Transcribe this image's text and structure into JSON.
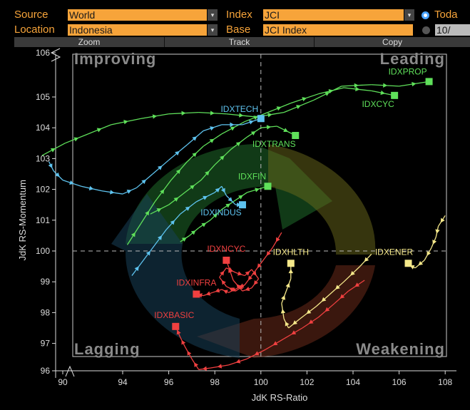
{
  "header": {
    "source_label": "Source",
    "source_value": "World",
    "index_label": "Index",
    "index_value": "JCI",
    "location_label": "Location",
    "location_value": "Indonesia",
    "base_label": "Base",
    "base_value": "JCI Index",
    "option1": "Toda",
    "option2": "10/"
  },
  "menu": {
    "zoom": "Zoom",
    "track": "Track",
    "copy": "Copy"
  },
  "colors": {
    "orange": "#f7a43a",
    "leading": "#5fe05a",
    "improving": "#5ec3ef",
    "lagging": "#f04040",
    "weakening": "#f5e88a"
  },
  "chart_data": {
    "type": "scatter",
    "xlabel": "JdK RS-Ratio",
    "ylabel": "JdK RS-Momentum",
    "xlim": [
      90,
      108.5
    ],
    "ylim": [
      96,
      106
    ],
    "x_ticks": [
      "90",
      "94",
      "96",
      "98",
      "100",
      "102",
      "104",
      "106",
      "108"
    ],
    "y_ticks": [
      "106",
      "105",
      "104",
      "103",
      "102",
      "101",
      "100",
      "99",
      "98",
      "97",
      "96"
    ],
    "quadrants": {
      "top_left": "Improving",
      "top_right": "Leading",
      "bottom_left": "Lagging",
      "bottom_right": "Weakening"
    },
    "series": [
      {
        "name": "IDXPROP",
        "color": "#5fe05a",
        "label_dx": -30,
        "label_dy": -10,
        "points": [
          [
            90.5,
            103.1
          ],
          [
            91.5,
            103.5
          ],
          [
            92.5,
            103.8
          ],
          [
            93.5,
            104.1
          ],
          [
            94.8,
            104.3
          ],
          [
            96,
            104.45
          ],
          [
            97.3,
            104.5
          ],
          [
            98.5,
            104.45
          ],
          [
            99.8,
            104.35
          ],
          [
            101,
            104.5
          ],
          [
            102.3,
            104.9
          ],
          [
            103.5,
            105.35
          ],
          [
            104.8,
            105.4
          ],
          [
            106,
            105.35
          ],
          [
            107.3,
            105.5
          ]
        ]
      },
      {
        "name": "IDXCYC",
        "color": "#5fe05a",
        "label_dx": -23,
        "label_dy": 16,
        "points": [
          [
            94.2,
            100.2
          ],
          [
            94.8,
            100.9
          ],
          [
            95.4,
            101.6
          ],
          [
            96.1,
            102.3
          ],
          [
            96.8,
            102.9
          ],
          [
            97.5,
            103.4
          ],
          [
            98.3,
            103.8
          ],
          [
            99.3,
            104.2
          ],
          [
            100.3,
            104.5
          ],
          [
            101.3,
            104.8
          ],
          [
            102.5,
            105.1
          ],
          [
            103.6,
            105.3
          ],
          [
            104.8,
            105.2
          ],
          [
            105.8,
            105.05
          ]
        ]
      },
      {
        "name": "IDXTRANS",
        "color": "#5fe05a",
        "label_dx": -30,
        "label_dy": 16,
        "points": [
          [
            95.2,
            101.2
          ],
          [
            96,
            101.5
          ],
          [
            96.7,
            101.9
          ],
          [
            97.4,
            102.3
          ],
          [
            98,
            102.8
          ],
          [
            98.7,
            103.3
          ],
          [
            99.4,
            103.7
          ],
          [
            100,
            104
          ],
          [
            100.7,
            104.05
          ],
          [
            101.5,
            103.75
          ]
        ]
      },
      {
        "name": "IDXTECH",
        "color": "#5ec3ef",
        "label_dx": -30,
        "label_dy": -9,
        "points": [
          [
            90.8,
            102.9
          ],
          [
            91,
            102.6
          ],
          [
            91.4,
            102.3
          ],
          [
            92.2,
            102.1
          ],
          [
            93.1,
            101.95
          ],
          [
            94,
            101.85
          ],
          [
            94.6,
            102.05
          ],
          [
            95.3,
            102.5
          ],
          [
            96,
            102.95
          ],
          [
            96.8,
            103.45
          ],
          [
            97.5,
            103.9
          ],
          [
            98.3,
            104.1
          ],
          [
            99.2,
            104.1
          ],
          [
            100,
            104.3
          ]
        ]
      },
      {
        "name": "IDXFIN",
        "color": "#5fe05a",
        "label_dx": -22,
        "label_dy": -10,
        "points": [
          [
            96.5,
            100.3
          ],
          [
            96.9,
            100.5
          ],
          [
            97.3,
            100.75
          ],
          [
            97.8,
            101.0
          ],
          [
            98.3,
            101.35
          ],
          [
            98.9,
            101.65
          ],
          [
            99.4,
            101.9
          ],
          [
            100.3,
            102.1
          ]
        ]
      },
      {
        "name": "IDXINDUS",
        "color": "#5ec3ef",
        "label_dx": -30,
        "label_dy": 15,
        "points": [
          [
            94.4,
            99.2
          ],
          [
            94.9,
            99.7
          ],
          [
            95.4,
            100.2
          ],
          [
            95.9,
            100.7
          ],
          [
            96.5,
            101.2
          ],
          [
            97.2,
            101.6
          ],
          [
            98,
            101.9
          ],
          [
            98.3,
            102.1
          ],
          [
            98.5,
            101.8
          ],
          [
            98.9,
            101.5
          ],
          [
            99.2,
            101.5
          ]
        ]
      },
      {
        "name": "IDXNCYC",
        "color": "#f04040",
        "label_dx": 0,
        "label_dy": -12,
        "points": [
          [
            100.9,
            100.6
          ],
          [
            100.5,
            100.1
          ],
          [
            100.1,
            99.7
          ],
          [
            99.7,
            99.3
          ],
          [
            99.3,
            98.9
          ],
          [
            98.9,
            98.7
          ],
          [
            98.5,
            98.85
          ],
          [
            98.2,
            99.15
          ],
          [
            98.5,
            99.45
          ],
          [
            98.9,
            99.3
          ],
          [
            99.3,
            99.2
          ],
          [
            99.6,
            99.4
          ],
          [
            99.9,
            99.1
          ],
          [
            99.6,
            98.8
          ],
          [
            99.2,
            98.7
          ],
          [
            98.8,
            99.05
          ],
          [
            98.5,
            99.7
          ]
        ]
      },
      {
        "name": "IDXINFRA",
        "color": "#f04040",
        "label_dx": 0,
        "label_dy": -12,
        "points": [
          [
            99.3,
            98.9
          ],
          [
            99,
            98.8
          ],
          [
            98.6,
            98.65
          ],
          [
            98.3,
            98.75
          ],
          [
            97.9,
            98.65
          ],
          [
            97.5,
            98.55
          ],
          [
            97.2,
            98.6
          ]
        ]
      },
      {
        "name": "IDXBASIC",
        "color": "#f04040",
        "label_dx": -2,
        "label_dy": -12,
        "points": [
          [
            104.5,
            99.05
          ],
          [
            103.8,
            98.7
          ],
          [
            103.2,
            98.3
          ],
          [
            102.5,
            97.85
          ],
          [
            101.8,
            97.5
          ],
          [
            101,
            97.15
          ],
          [
            100.2,
            96.8
          ],
          [
            99.4,
            96.5
          ],
          [
            98.6,
            96.3
          ],
          [
            97.8,
            96.2
          ],
          [
            97.3,
            96.15
          ],
          [
            97,
            96.5
          ],
          [
            96.7,
            96.9
          ],
          [
            96.5,
            97.2
          ],
          [
            96.3,
            97.55
          ]
        ]
      },
      {
        "name": "IDXHLTH",
        "color": "#f5e88a",
        "label_dx": 0,
        "label_dy": -12,
        "points": [
          [
            104.8,
            99.9
          ],
          [
            104.3,
            99.5
          ],
          [
            103.6,
            99.0
          ],
          [
            103,
            98.6
          ],
          [
            102.4,
            98.2
          ],
          [
            101.7,
            97.8
          ],
          [
            101.2,
            97.5
          ],
          [
            101,
            97.8
          ],
          [
            100.9,
            98.3
          ],
          [
            101.1,
            98.7
          ],
          [
            101.3,
            99.1
          ],
          [
            101.3,
            99.6
          ]
        ]
      },
      {
        "name": "IDXENER",
        "color": "#f5e88a",
        "label_dx": -20,
        "label_dy": -12,
        "points": [
          [
            108,
            101.15
          ],
          [
            107.7,
            100.8
          ],
          [
            107.6,
            100.45
          ],
          [
            107.4,
            100.1
          ],
          [
            107.1,
            99.7
          ],
          [
            106.7,
            99.45
          ],
          [
            106.4,
            99.55
          ],
          [
            106.4,
            99.6
          ]
        ]
      }
    ]
  }
}
